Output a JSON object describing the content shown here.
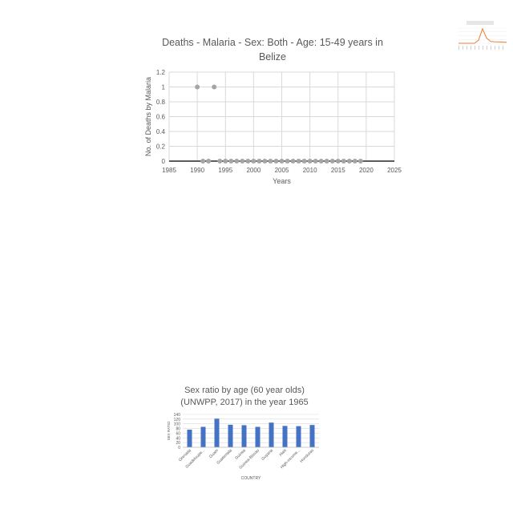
{
  "chart_data": [
    {
      "type": "scatter",
      "title_line1": "Deaths - Malaria - Sex: Both - Age: 15-49 years in",
      "title_line2": "Belize",
      "xlabel": "Years",
      "ylabel": "No. of Deaths by Malaria",
      "xlim": [
        1985,
        2025
      ],
      "ylim": [
        0,
        1.2
      ],
      "xticks": [
        1985,
        1990,
        1995,
        2000,
        2005,
        2010,
        2015,
        2020,
        2025
      ],
      "yticks": [
        "0",
        "0.2",
        "0.4",
        "0.6",
        "0.8",
        "1",
        "1.2"
      ],
      "grid": true,
      "color": "#a5a5a5",
      "x": [
        1990,
        1991,
        1992,
        1993,
        1994,
        1995,
        1996,
        1997,
        1998,
        1999,
        2000,
        2001,
        2002,
        2003,
        2004,
        2005,
        2006,
        2007,
        2008,
        2009,
        2010,
        2011,
        2012,
        2013,
        2014,
        2015,
        2016,
        2017,
        2018,
        2019
      ],
      "y": [
        1,
        0,
        0,
        1,
        0,
        0,
        0,
        0,
        0,
        0,
        0,
        0,
        0,
        0,
        0,
        0,
        0,
        0,
        0,
        0,
        0,
        0,
        0,
        0,
        0,
        0,
        0,
        0,
        0,
        0
      ]
    },
    {
      "type": "line",
      "note": "tiny thumbnail chart, text unreadable",
      "color": "#ed7d31",
      "values": [
        0,
        0,
        0,
        0,
        0,
        0.2,
        0.95,
        0.35,
        0.12,
        0.1,
        0.09,
        0.08,
        0.07
      ]
    },
    {
      "type": "bar",
      "title_line1": "Sex ratio by age (60 year olds)",
      "title_line2": "(UNWPP, 2017) in the year 1965",
      "xlabel": "COUNTRY",
      "ylabel": "SEX RATIO",
      "ylim": [
        0,
        140
      ],
      "yticks": [
        "0",
        "20",
        "40",
        "60",
        "80",
        "100",
        "120",
        "140"
      ],
      "grid": true,
      "color": "#4472c4",
      "categories": [
        "Grenada",
        "Guadeloupe...",
        "Guam",
        "Guatemala",
        "Guinea",
        "Guinea-Bissau",
        "Guyana",
        "Haiti",
        "High-income...",
        "Honduras"
      ],
      "values": [
        75,
        87,
        122,
        96,
        94,
        87,
        105,
        91,
        90,
        95
      ]
    }
  ]
}
